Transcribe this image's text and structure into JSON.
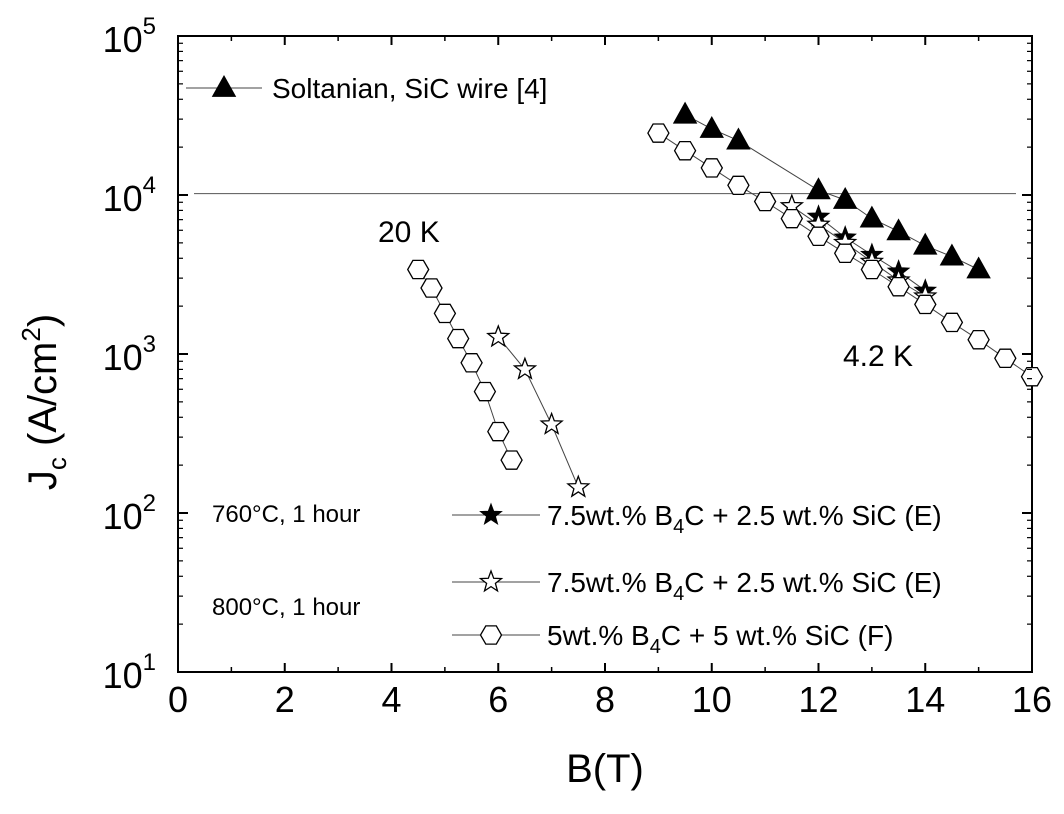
{
  "chart_data": {
    "type": "scatter",
    "xlabel": "B(T)",
    "ylabel": {
      "main": "J",
      "sub": "c",
      "rest": " (A/cm",
      "sup": "2",
      "close": ")"
    },
    "xlim": [
      0,
      16
    ],
    "ylim": [
      10,
      100000
    ],
    "yscale": "log",
    "x_ticks": [
      "0",
      "2",
      "4",
      "6",
      "8",
      "10",
      "12",
      "14",
      "16"
    ],
    "y_ticks": [
      {
        "base": "10",
        "exp": "1"
      },
      {
        "base": "10",
        "exp": "2"
      },
      {
        "base": "10",
        "exp": "3"
      },
      {
        "base": "10",
        "exp": "4"
      },
      {
        "base": "10",
        "exp": "5"
      }
    ],
    "annotations": {
      "t20": "20 K",
      "t42": "4.2 K"
    },
    "conditions": {
      "c760": "760°C, 1 hour",
      "c800": "800°C, 1 hour"
    },
    "legend_labels": {
      "soltanian": "Soltanian, SiC wire [4]",
      "e760": {
        "a": "7.5wt.% B",
        "sub": "4",
        "b": "C + 2.5 wt.% SiC (E)"
      },
      "e800": {
        "a": "7.5wt.% B",
        "sub": "4",
        "b": "C + 2.5 wt.% SiC (E)"
      },
      "f800": {
        "a": "5wt.% B",
        "sub": "4",
        "b": "C + 5 wt.% SiC (F)"
      }
    },
    "series": [
      {
        "key": "soltanian",
        "marker": "filled-triangle",
        "x": [
          9.5,
          10,
          10.5,
          12,
          12.5,
          13,
          13.5,
          14,
          14.5,
          15
        ],
        "y": [
          32000,
          26000,
          22000,
          10700,
          9300,
          7100,
          5900,
          4800,
          4100,
          3400
        ]
      },
      {
        "key": "e760_42K",
        "marker": "filled-star",
        "x": [
          12,
          12.5,
          13,
          13.5,
          14
        ],
        "y": [
          7300,
          5400,
          4200,
          3300,
          2500
        ]
      },
      {
        "key": "e800_42K",
        "marker": "open-star",
        "x": [
          11.5,
          12,
          12.5,
          13,
          13.5,
          14
        ],
        "y": [
          8500,
          6500,
          5000,
          3800,
          2900,
          2300
        ]
      },
      {
        "key": "f800_42K",
        "marker": "open-hexagon",
        "x": [
          9,
          9.5,
          10,
          10.5,
          11,
          11.5,
          12,
          12.5,
          13,
          13.5,
          14,
          14.5,
          15,
          15.5,
          16
        ],
        "y": [
          24500,
          19000,
          14800,
          11500,
          9100,
          7100,
          5500,
          4300,
          3400,
          2650,
          2050,
          1580,
          1230,
          940,
          720
        ]
      },
      {
        "key": "e800_20K",
        "marker": "open-star",
        "x": [
          6,
          6.5,
          7,
          7.5
        ],
        "y": [
          1280,
          800,
          360,
          145
        ]
      },
      {
        "key": "f800_20K",
        "marker": "open-hexagon",
        "x": [
          4.5,
          4.75,
          5,
          5.25,
          5.5,
          5.75,
          6,
          6.25
        ],
        "y": [
          3400,
          2600,
          1800,
          1250,
          880,
          580,
          325,
          215
        ]
      }
    ]
  }
}
